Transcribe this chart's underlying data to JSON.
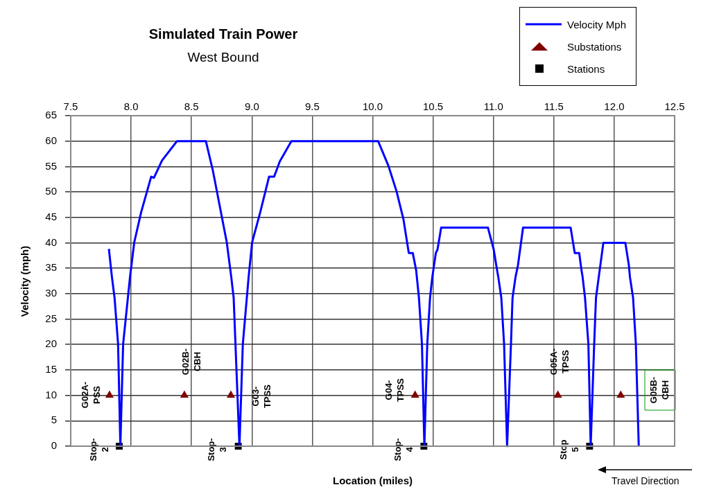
{
  "chart_data": {
    "type": "line",
    "title": "Simulated Train Power",
    "subtitle": "West Bound",
    "xlabel": "Location (miles)",
    "ylabel": "Velocity (mph)",
    "xlim": [
      7.5,
      12.5
    ],
    "xticks": [
      {
        "value": 7.5,
        "label": "7.5"
      },
      {
        "value": 8,
        "label": "8.0"
      },
      {
        "value": 8.5,
        "label": "8.5"
      },
      {
        "value": 9,
        "label": "9.0"
      },
      {
        "value": 9.5,
        "label": "9.5"
      },
      {
        "value": 10,
        "label": "10.0"
      },
      {
        "value": 10.5,
        "label": "10.5"
      },
      {
        "value": 11,
        "label": "11.0"
      },
      {
        "value": 11.5,
        "label": "11.5"
      },
      {
        "value": 12,
        "label": "12.0"
      },
      {
        "value": 12.5,
        "label": "12.5"
      }
    ],
    "ylim": [
      0,
      65
    ],
    "yticks": [
      0,
      5,
      10,
      15,
      20,
      25,
      30,
      35,
      40,
      45,
      50,
      55,
      60,
      65
    ],
    "grid": true,
    "legend": "top right",
    "series": [
      {
        "name": "Velocity Mph",
        "color": "#0000ff",
        "marker": "none",
        "x": [
          7.816,
          7.841,
          7.863,
          7.892,
          7.911,
          7.934,
          7.991,
          8.026,
          8.083,
          8.166,
          8.189,
          8.256,
          8.38,
          8.619,
          8.677,
          8.792,
          8.829,
          8.849,
          8.897,
          8.925,
          8.973,
          9.002,
          9.069,
          9.142,
          9.184,
          9.231,
          9.327,
          10.045,
          10.131,
          10.198,
          10.255,
          10.299,
          10.332,
          10.36,
          10.383,
          10.408,
          10.428,
          10.452,
          10.475,
          10.494,
          10.523,
          10.537,
          10.567,
          10.954,
          11.002,
          11.03,
          11.04,
          11.065,
          11.088,
          11.113,
          11.145,
          11.158,
          11.183,
          11.203,
          11.245,
          11.639,
          11.673,
          11.71,
          11.729,
          11.738,
          11.758,
          11.786,
          11.805,
          11.834,
          11.849,
          11.872,
          11.91,
          12.092,
          12.121,
          12.13,
          12.156,
          12.179,
          12.203
        ],
        "values": [
          38.8,
          33.3,
          29.2,
          20.1,
          0,
          20.1,
          33.3,
          40.1,
          46,
          53,
          52.8,
          56.2,
          60,
          60,
          54.2,
          40.1,
          33.3,
          29.2,
          0,
          20.1,
          33.3,
          40.1,
          46,
          53,
          53,
          56,
          60,
          60,
          55.1,
          50.1,
          44.6,
          38,
          38,
          34.6,
          29.2,
          20.1,
          0,
          20.1,
          29.2,
          33.3,
          38,
          38.7,
          43,
          43,
          38.7,
          34.6,
          33.3,
          29.2,
          20.1,
          0,
          20.1,
          29.2,
          33.3,
          35.6,
          43,
          43,
          38,
          38,
          34.6,
          33.3,
          29.2,
          20.1,
          0,
          20.1,
          29.2,
          33.3,
          40,
          40,
          35.6,
          33.3,
          29.2,
          20.1,
          0
        ]
      },
      {
        "name": "Substations",
        "type": "scatter",
        "color": "#800000",
        "marker": "triangle",
        "x": [
          7.821,
          8.441,
          8.826,
          10.351,
          11.533,
          12.054
        ],
        "values": [
          10,
          10,
          10,
          10,
          10,
          10
        ]
      },
      {
        "name": "Stations",
        "type": "scatter",
        "color": "#000000",
        "marker": "square",
        "x": [
          7.902,
          8.887,
          10.424,
          11.796
        ],
        "values": [
          0,
          0,
          0,
          0
        ]
      }
    ],
    "annotations": [
      "G02A-PSS",
      "G02B-CBH",
      "G03-TPSS",
      "G04-TPSS",
      "G05A-TPSS",
      "G05B-CBH",
      "Stop-2",
      "Stop-3",
      "Stop-4",
      "Stop 5",
      "Travel Direction"
    ]
  }
}
